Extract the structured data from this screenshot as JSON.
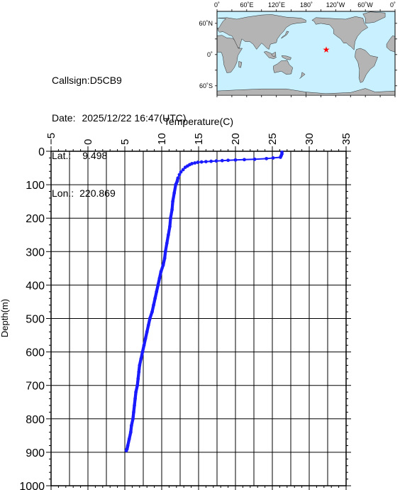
{
  "station": {
    "callsign_label": "Callsign:",
    "callsign": "D5CB9",
    "date_label": "Date:",
    "date": "2025/12/22 16:47(UTC)",
    "lat_label": "Lat.:",
    "lat": "9.498",
    "lon_label": "Lon.:",
    "lon": "220.869"
  },
  "map": {
    "top_labels": [
      "0˚",
      "60˚E",
      "120˚E",
      "180˚",
      "120˚W",
      "60˚W",
      "0˚"
    ],
    "left_labels": [
      "60˚N",
      "0˚",
      "60˚S"
    ],
    "ocean_color": "#c8f0ff",
    "land_color": "#b4b4b4",
    "marker_color": "#ff0000",
    "marker_lon": 220.869,
    "marker_lat": 9.498
  },
  "chart_data": {
    "type": "line",
    "xlabel": "Temperature(C)",
    "ylabel": "Depth(m)",
    "xlim": [
      -5,
      35
    ],
    "ylim": [
      0,
      1000
    ],
    "y_inverted": true,
    "x_position": "top",
    "x_ticks": [
      -5,
      0,
      5,
      10,
      15,
      20,
      25,
      30,
      35
    ],
    "y_ticks": [
      0,
      100,
      200,
      300,
      400,
      500,
      600,
      700,
      800,
      900,
      1000
    ],
    "grid": true,
    "series_color": "#1a1aff",
    "series": [
      {
        "x": [
          26.3,
          26.3,
          26.2,
          26.1,
          25.1,
          24.2,
          22.6,
          21.2,
          20.0,
          19.0,
          18.2,
          17.4,
          16.7,
          16.0,
          15.4,
          14.9,
          14.5,
          14.1,
          13.8,
          13.5,
          13.2,
          12.9,
          12.6,
          12.4,
          12.2,
          12.1,
          11.9,
          11.7,
          11.5,
          11.4,
          11.2,
          11.1,
          10.9,
          10.7,
          10.5,
          10.4,
          10.2,
          9.9,
          9.7,
          9.5,
          9.3,
          9.1,
          8.9,
          8.7,
          8.4,
          8.2,
          8.0,
          7.8,
          7.6,
          7.4,
          7.2,
          7.0,
          6.9,
          6.8,
          6.7,
          6.5,
          6.4,
          6.3,
          6.2,
          6.1,
          5.9,
          5.8,
          5.6,
          5.4,
          5.3,
          5.2
        ],
        "y": [
          3,
          8,
          13,
          18,
          20,
          22,
          24,
          25,
          26,
          27,
          28,
          29,
          30,
          31,
          32,
          33,
          35,
          37,
          40,
          44,
          48,
          55,
          62,
          70,
          80,
          90,
          100,
          125,
          150,
          175,
          200,
          225,
          250,
          275,
          300,
          320,
          340,
          360,
          380,
          400,
          420,
          440,
          460,
          480,
          500,
          520,
          540,
          560,
          580,
          600,
          620,
          640,
          660,
          680,
          700,
          720,
          740,
          760,
          780,
          800,
          820,
          840,
          860,
          880,
          890,
          895
        ]
      }
    ]
  }
}
